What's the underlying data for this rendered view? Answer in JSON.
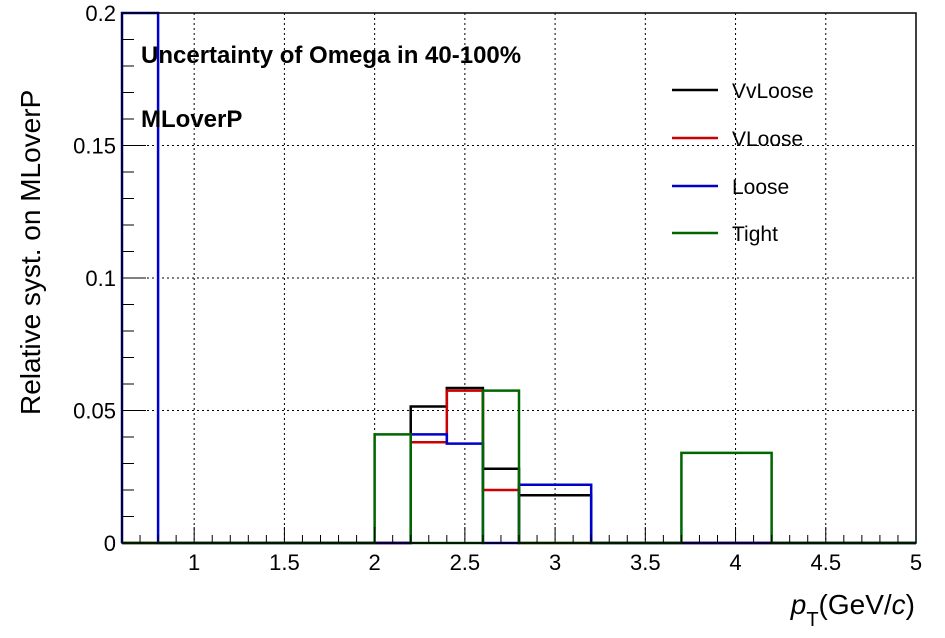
{
  "chart_data": {
    "type": "step",
    "annotations": [
      "Uncertainty of Omega in 40-100%",
      "MLoverP"
    ],
    "xlabel": {
      "main": "p",
      "sub": "T",
      "unit_open": "(GeV/",
      "unit_var": "c",
      "unit_close": ")"
    },
    "ylabel": "Relative syst. on MLoverP",
    "xlim": [
      0.6,
      5.0
    ],
    "ylim": [
      0,
      0.2
    ],
    "xticks": [
      {
        "v": 1,
        "label": "1"
      },
      {
        "v": 1.5,
        "label": "1.5"
      },
      {
        "v": 2,
        "label": "2"
      },
      {
        "v": 2.5,
        "label": "2.5"
      },
      {
        "v": 3,
        "label": "3"
      },
      {
        "v": 3.5,
        "label": "3.5"
      },
      {
        "v": 4,
        "label": "4"
      },
      {
        "v": 4.5,
        "label": "4.5"
      },
      {
        "v": 5,
        "label": "5"
      }
    ],
    "yticks": [
      {
        "v": 0,
        "label": "0"
      },
      {
        "v": 0.05,
        "label": "0.05"
      },
      {
        "v": 0.1,
        "label": "0.1"
      },
      {
        "v": 0.15,
        "label": "0.15"
      },
      {
        "v": 0.2,
        "label": "0.2"
      }
    ],
    "grid": true,
    "legend_position": "top-right",
    "bin_edges": [
      0.6,
      0.8,
      1.0,
      1.2,
      1.4,
      1.6,
      1.8,
      2.0,
      2.2,
      2.4,
      2.6,
      2.8,
      3.2,
      3.7,
      4.2,
      5.0
    ],
    "series": [
      {
        "name": "VvLoose",
        "color": "#000000",
        "values": [
          0,
          0,
          0,
          0,
          0,
          0,
          0,
          0,
          0.0515,
          0.0585,
          0.028,
          0.018,
          0,
          0,
          0
        ]
      },
      {
        "name": "VLoose",
        "color": "#cc0000",
        "values": [
          0,
          0,
          0,
          0,
          0,
          0,
          0,
          0,
          0.038,
          0.0575,
          0.02,
          0,
          0,
          0,
          0
        ]
      },
      {
        "name": "Loose",
        "color": "#0000cc",
        "values": [
          0.2,
          0,
          0,
          0,
          0,
          0,
          0,
          0,
          0.041,
          0.0375,
          0,
          0.022,
          0,
          0,
          0
        ]
      },
      {
        "name": "Tight",
        "color": "#006600",
        "values": [
          0,
          0,
          0,
          0,
          0,
          0,
          0,
          0.041,
          0,
          0,
          0.0575,
          0,
          0,
          0.034,
          0
        ]
      }
    ]
  }
}
